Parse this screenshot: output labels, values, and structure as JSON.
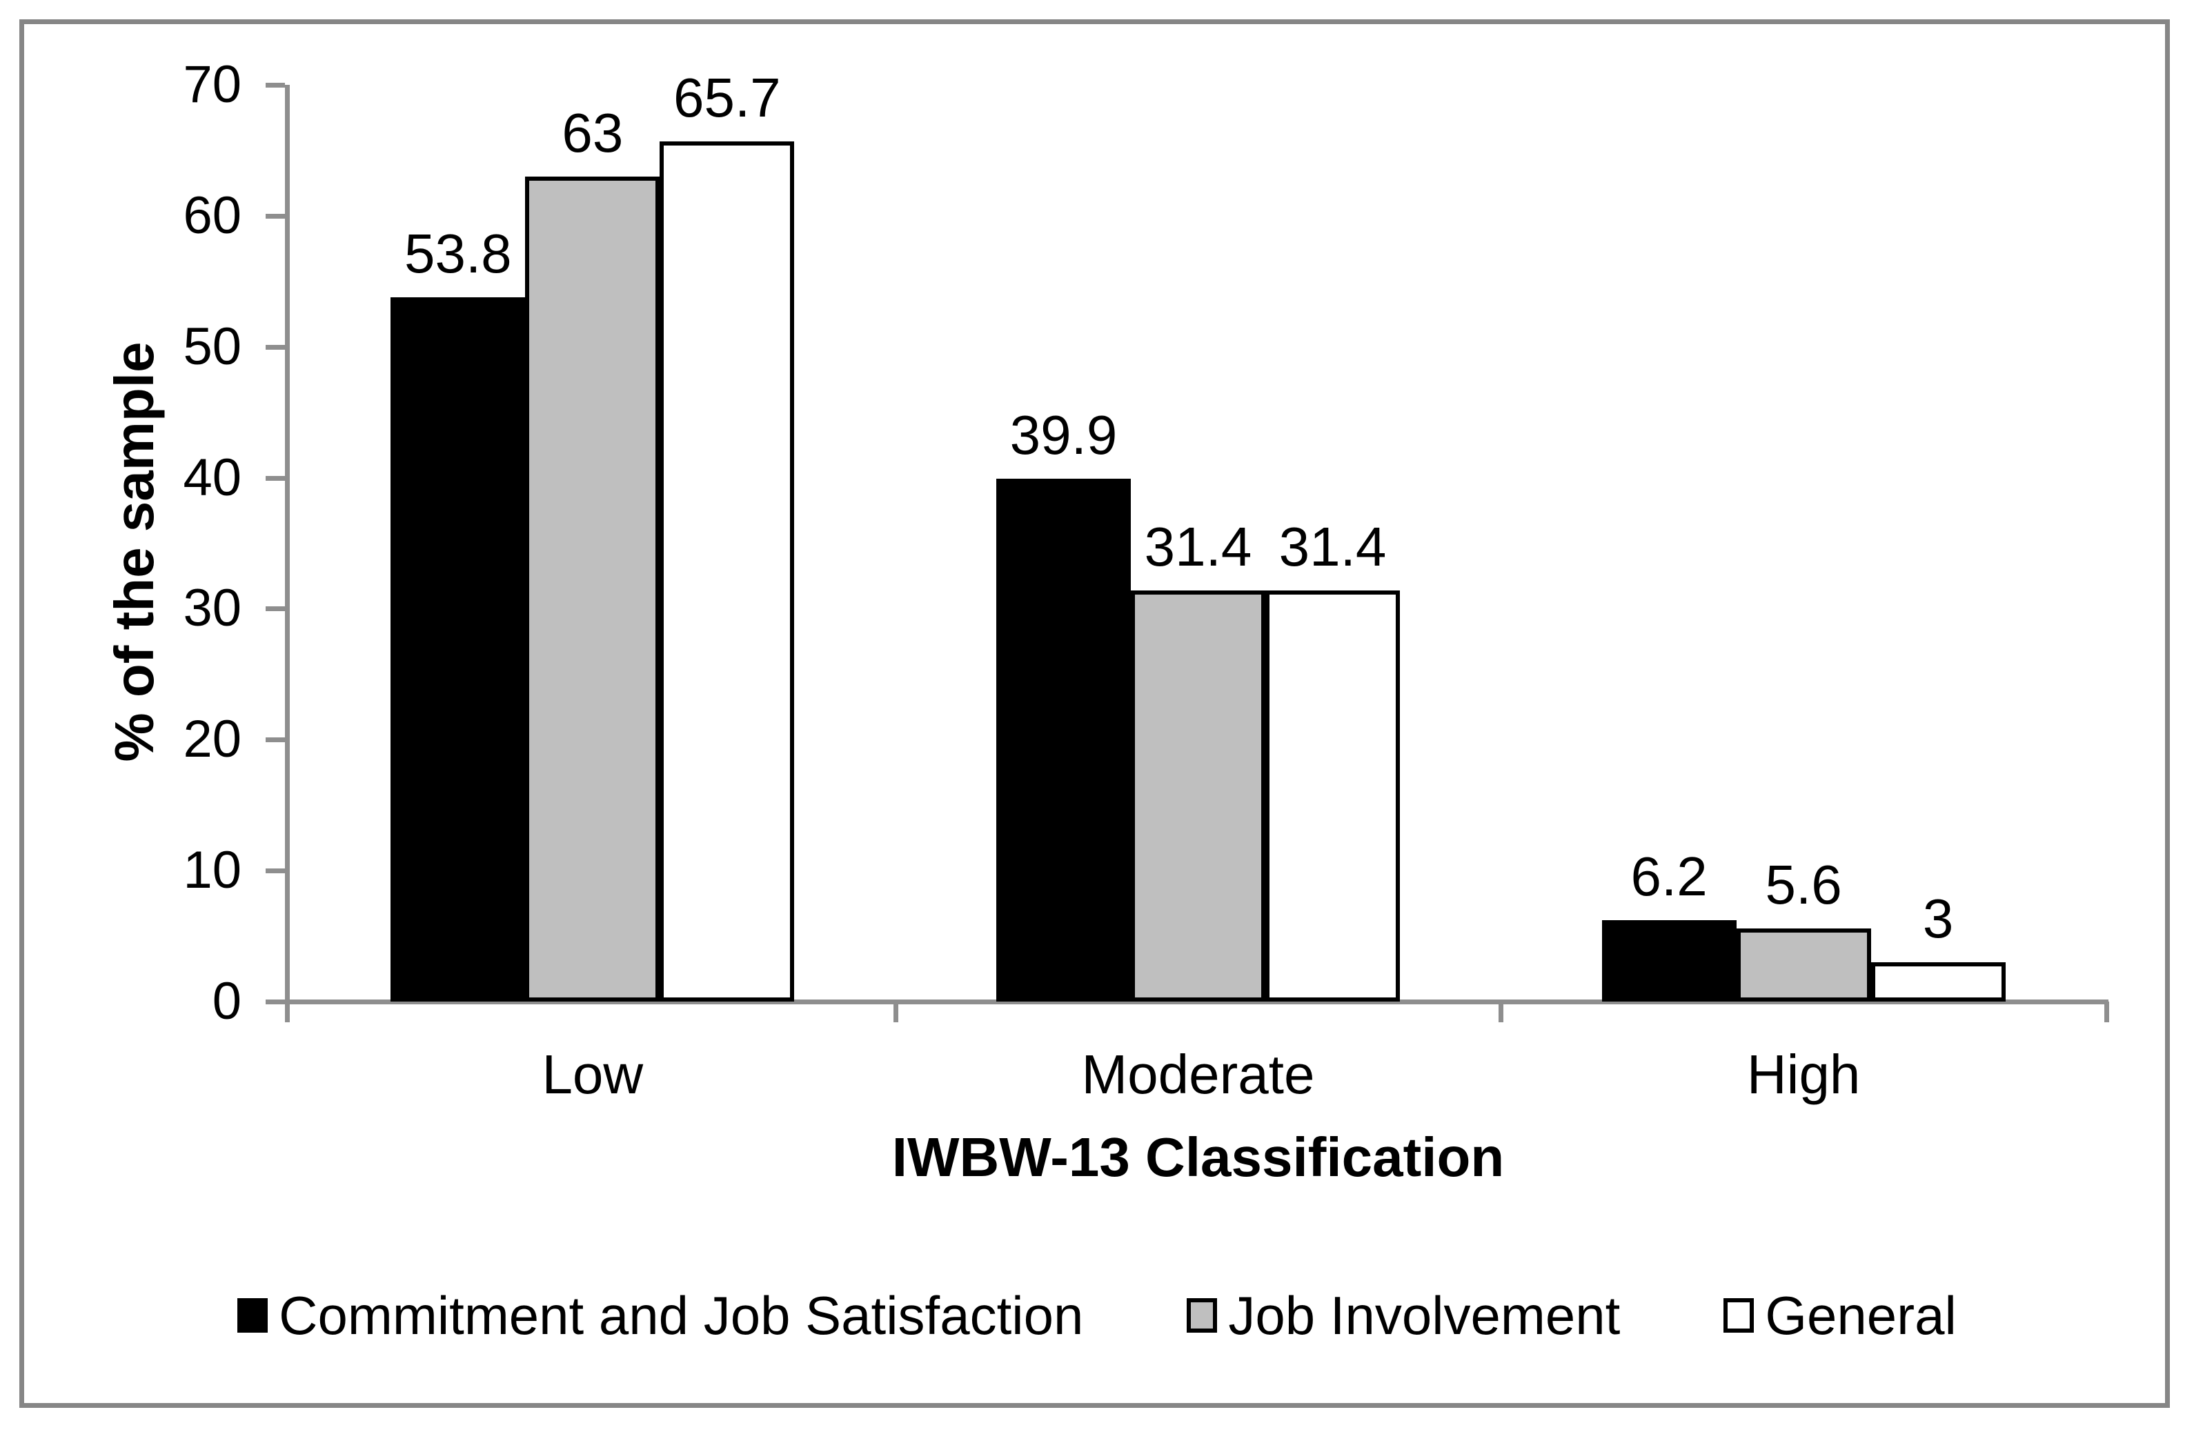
{
  "chart_data": {
    "type": "bar",
    "title": "",
    "xlabel": "IWBW-13 Classification",
    "ylabel": "% of the sample",
    "categories": [
      "Low",
      "Moderate",
      "High"
    ],
    "series": [
      {
        "name": "Commitment and Job Satisfaction",
        "color": "#000000",
        "values": [
          53.8,
          39.9,
          6.2
        ],
        "labels": [
          "53.8",
          "39.9",
          "6.2"
        ]
      },
      {
        "name": "Job Involvement",
        "color": "#BFBFBF",
        "values": [
          63,
          31.4,
          5.6
        ],
        "labels": [
          "63",
          "31.4",
          "5.6"
        ]
      },
      {
        "name": "General",
        "color": "#FFFFFF",
        "values": [
          65.7,
          31.4,
          3
        ],
        "labels": [
          "65.7",
          "31.4",
          "3"
        ]
      }
    ],
    "ylim": [
      0,
      70
    ],
    "ytick_step": 10,
    "ytick_labels": [
      "0",
      "10",
      "20",
      "30",
      "40",
      "50",
      "60",
      "70"
    ],
    "grid": false,
    "legend_position": "bottom",
    "bar_border_color": "#000000",
    "axis_color": "#8E8E8E",
    "frame_color": "#868686"
  }
}
